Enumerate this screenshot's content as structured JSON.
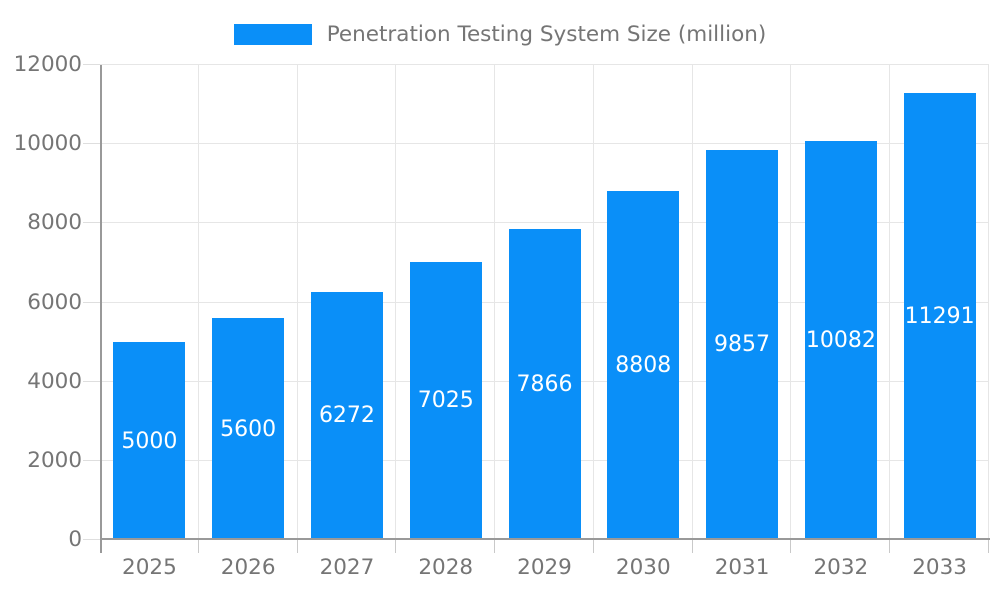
{
  "chart_data": {
    "type": "bar",
    "title": "Penetration Testing System Size (million)",
    "series_name": "Penetration Testing System Size (million)",
    "categories": [
      "2025",
      "2026",
      "2027",
      "2028",
      "2029",
      "2030",
      "2031",
      "2032",
      "2033"
    ],
    "values": [
      5000,
      5600,
      6272,
      7025,
      7866,
      8808,
      9857,
      10082,
      11291
    ],
    "xlabel": "",
    "ylabel": "",
    "ylim": [
      0,
      12000
    ],
    "ytick_step": 2000,
    "ytick_labels": [
      "0",
      "2000",
      "4000",
      "6000",
      "8000",
      "10000",
      "12000"
    ],
    "grid": true,
    "legend_position": "top",
    "bar_color": "#0a8ff8",
    "value_label_color": "#ffffff"
  },
  "style": {
    "background": "#ffffff",
    "axis_color": "#999999",
    "grid_color": "#e6e6e6",
    "tick_color": "#dedede",
    "tick_label_color": "#757575",
    "legend_text_color": "#757575"
  }
}
